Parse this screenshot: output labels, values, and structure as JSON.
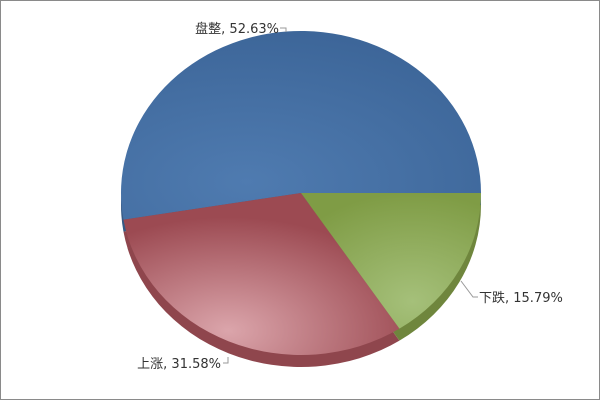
{
  "chart_data": {
    "type": "pie",
    "title": "",
    "start_angle_deg": 0,
    "direction": "counterclockwise",
    "three_d": true,
    "slices": [
      {
        "label": "盘整",
        "value": 52.63,
        "display": "盘整, 52.63%",
        "color": "#406a9c"
      },
      {
        "label": "上涨",
        "value": 31.58,
        "display": "上涨, 31.58%",
        "color": "#a8525a"
      },
      {
        "label": "下跌",
        "value": 15.79,
        "display": "下跌, 15.79%",
        "color": "#829e48"
      }
    ]
  }
}
